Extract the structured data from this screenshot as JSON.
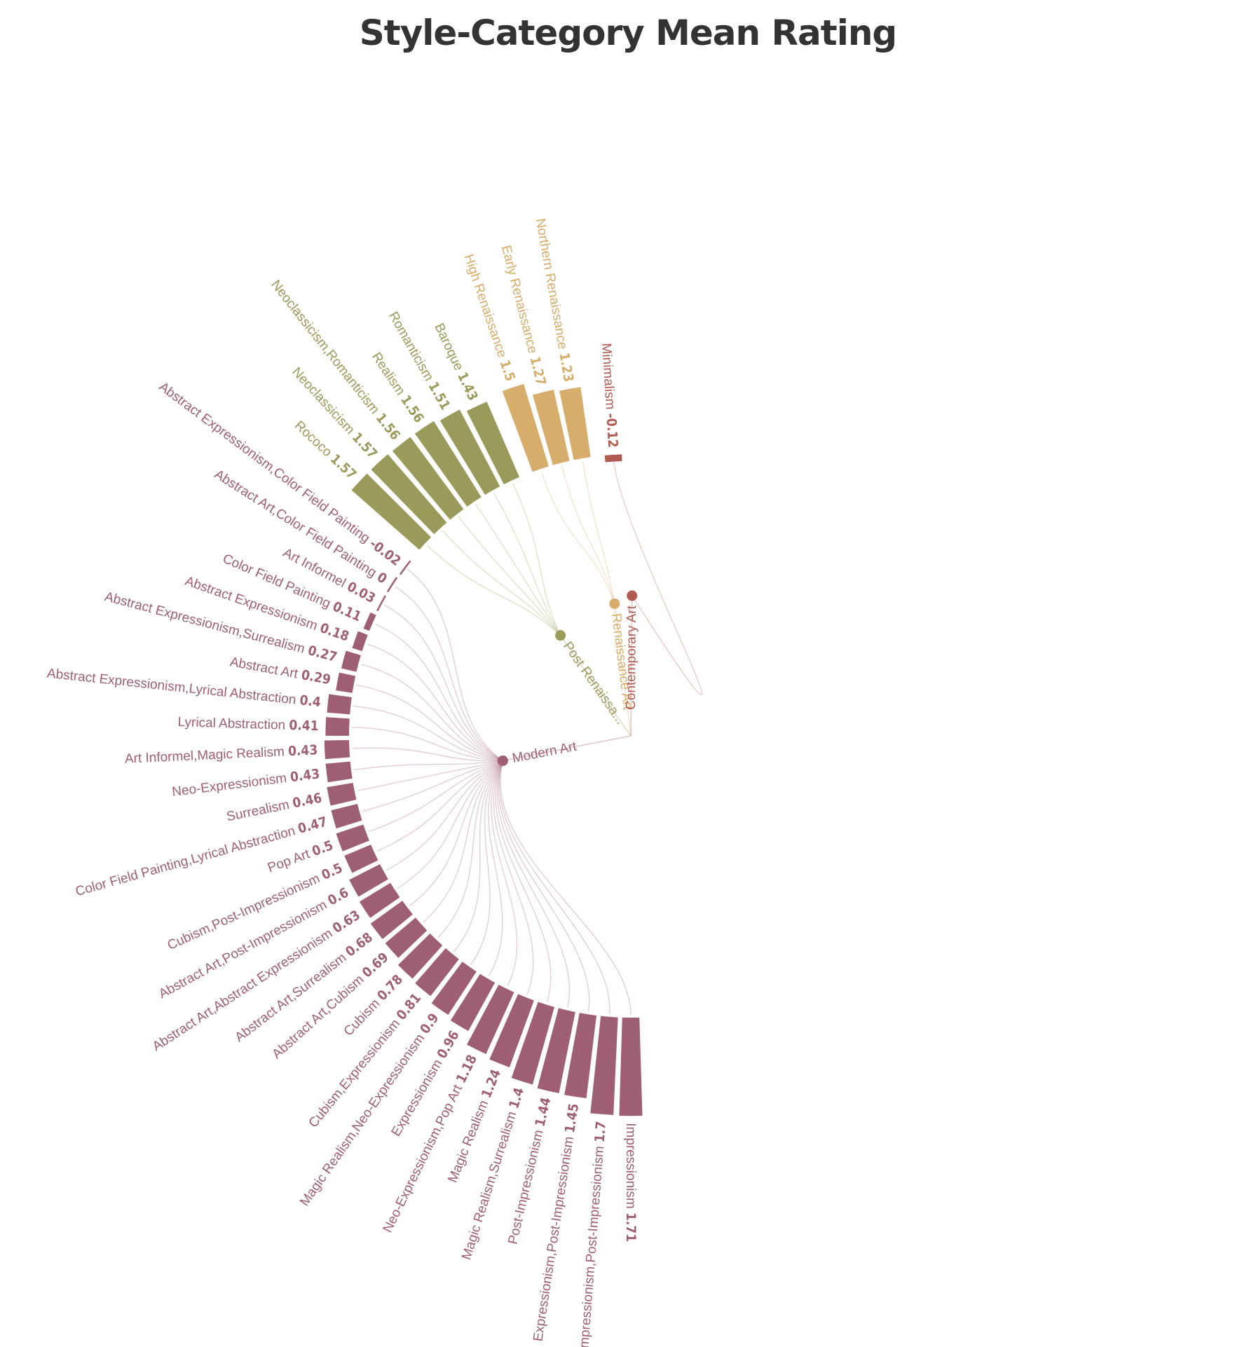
{
  "chart_data": {
    "type": "radial-bar-dendrogram",
    "title": "Style-Category Mean Rating",
    "colors": {
      "Modern Art": "#9e5f74",
      "Post Renaissance Art": "#9a9a5a",
      "Renaissance Art": "#d7ad6b",
      "Contemporary Art": "#b05b52"
    },
    "groups": [
      {
        "name": "Modern Art",
        "label": "Modern Art",
        "items": [
          {
            "name": "Impressionism",
            "value": 1.71
          },
          {
            "name": "Impressionism,Post-Impressionism",
            "value": 1.7
          },
          {
            "name": "Expressionism,Post-Impressionism",
            "value": 1.45
          },
          {
            "name": "Post-Impressionism",
            "value": 1.44
          },
          {
            "name": "Magic Realism,Surrealism",
            "value": 1.4
          },
          {
            "name": "Magic Realism",
            "value": 1.24
          },
          {
            "name": "Neo-Expressionism,Pop Art",
            "value": 1.18
          },
          {
            "name": "Expressionism",
            "value": 0.96
          },
          {
            "name": "Magic Realism,Neo-Expressionism",
            "value": 0.9
          },
          {
            "name": "Cubism,Expressionism",
            "value": 0.81
          },
          {
            "name": "Cubism",
            "value": 0.78
          },
          {
            "name": "Abstract Art,Cubism",
            "value": 0.69
          },
          {
            "name": "Abstract Art,Surrealism",
            "value": 0.68
          },
          {
            "name": "Abstract Art,Abstract Expressionism",
            "value": 0.63
          },
          {
            "name": "Abstract Art,Post-Impressionism",
            "value": 0.6
          },
          {
            "name": "Cubism,Post-Impressionism",
            "value": 0.5
          },
          {
            "name": "Pop Art",
            "value": 0.5
          },
          {
            "name": "Color Field Painting,Lyrical Abstraction",
            "value": 0.47
          },
          {
            "name": "Surrealism",
            "value": 0.46
          },
          {
            "name": "Neo-Expressionism",
            "value": 0.43
          },
          {
            "name": "Art Informel,Magic Realism",
            "value": 0.43
          },
          {
            "name": "Lyrical Abstraction",
            "value": 0.41
          },
          {
            "name": "Abstract Expressionism,Lyrical Abstraction",
            "value": 0.4
          },
          {
            "name": "Abstract Art",
            "value": 0.29
          },
          {
            "name": "Abstract Expressionism,Surrealism",
            "value": 0.27
          },
          {
            "name": "Abstract Expressionism",
            "value": 0.18
          },
          {
            "name": "Color Field Painting",
            "value": 0.11
          },
          {
            "name": "Art Informel",
            "value": 0.03
          },
          {
            "name": "Abstract Art,Color Field Painting",
            "value": 0
          },
          {
            "name": "Abstract Expressionism,Color Field Painting",
            "value": -0.02
          }
        ]
      },
      {
        "name": "Post Renaissance Art",
        "label": "Post Renaissa...",
        "items": [
          {
            "name": "Rococo",
            "value": 1.57
          },
          {
            "name": "Neoclassicism",
            "value": 1.57
          },
          {
            "name": "Neoclassicism,Romanticism",
            "value": 1.56
          },
          {
            "name": "Realism",
            "value": 1.56
          },
          {
            "name": "Romanticism",
            "value": 1.51
          },
          {
            "name": "Baroque",
            "value": 1.43
          }
        ]
      },
      {
        "name": "Renaissance Art",
        "label": "Renaissance Art",
        "items": [
          {
            "name": "High Renaissance",
            "value": 1.5
          },
          {
            "name": "Early Renaissance",
            "value": 1.27
          },
          {
            "name": "Northern Renaissance",
            "value": 1.23
          }
        ]
      },
      {
        "name": "Contemporary Art",
        "label": "Contemporary Art",
        "items": [
          {
            "name": "Minimalism",
            "value": -0.12
          }
        ]
      }
    ]
  }
}
